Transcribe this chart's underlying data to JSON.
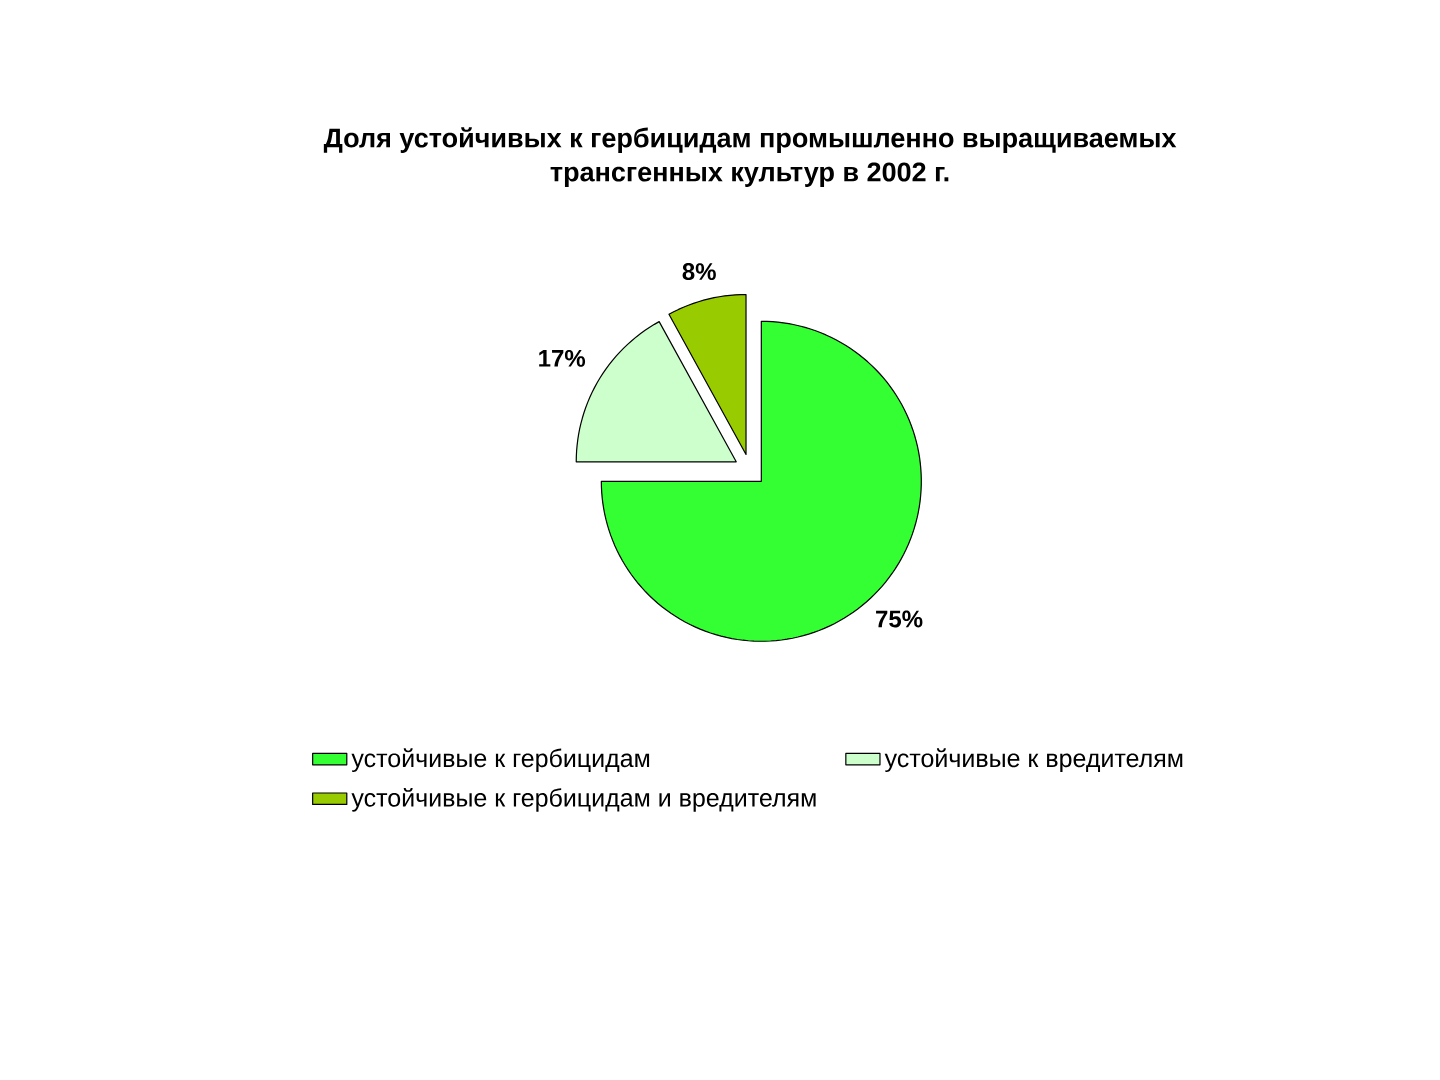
{
  "chart_data": {
    "type": "pie",
    "title": "Доля устойчивых к гербицидам промышленно выращиваемых трансгенных культур в 2002 г.",
    "categories": [
      "устойчивые к гербицидам",
      "устойчивые к вредителям",
      "устойчивые к гербицидам и вредителям"
    ],
    "values": [
      75,
      17,
      8
    ],
    "colors": [
      "#33ff33",
      "#ccffcc",
      "#99cc00"
    ],
    "value_labels": [
      "75%",
      "17%",
      "8%"
    ],
    "legend": "bottom"
  }
}
